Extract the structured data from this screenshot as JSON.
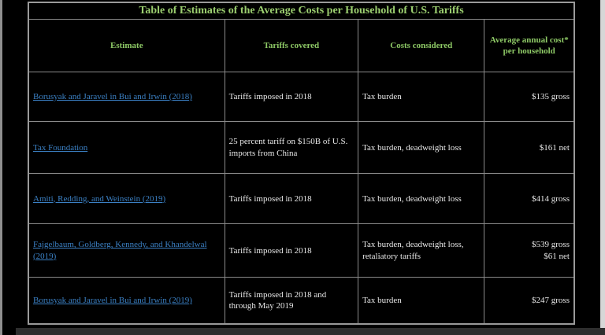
{
  "page": {
    "background_color": "#000000",
    "bottom_band_color": "#2e2e2e",
    "edge_strip_color": "#d7d7d7"
  },
  "table": {
    "title": "Table of Estimates of the Average Costs per Household of U.S. Tariffs",
    "title_color": "#9bce6f",
    "header_color": "#8ec966",
    "link_color": "#3b80c4",
    "body_text_color": "#e8e8e8",
    "border_color": "#8a8a8a",
    "headers": [
      "Estimate",
      "Tariffs covered",
      "Costs considered",
      "Average annual cost* per household"
    ],
    "rows": [
      {
        "estimate": "Borusyak and Jaravel in Bui and Irwin (2018)",
        "tariffs": "Tariffs imposed in 2018",
        "costs": "Tax burden",
        "cost": "$135 gross"
      },
      {
        "estimate": "Tax Foundation",
        "tariffs": "25 percent tariff on $150B of U.S. imports from China",
        "costs": "Tax burden, deadweight loss",
        "cost": "$161 net"
      },
      {
        "estimate": "Amiti, Redding, and Weinstein (2019)",
        "tariffs": "Tariffs imposed in 2018",
        "costs": "Tax burden, deadweight loss",
        "cost": "$414 gross"
      },
      {
        "estimate": "Fajgelbaum, Goldberg, Kennedy, and Khandelwal (2019)",
        "tariffs": "Tariffs imposed in 2018",
        "costs": "Tax burden, deadweight loss, retaliatory tariffs",
        "cost": "$539 gross\n$61 net"
      },
      {
        "estimate": "Borusyak and Jaravel in Bui and Irwin (2019)",
        "tariffs": "Tariffs imposed in 2018 and through May 2019",
        "costs": "Tax burden",
        "cost": "$247 gross"
      }
    ]
  }
}
